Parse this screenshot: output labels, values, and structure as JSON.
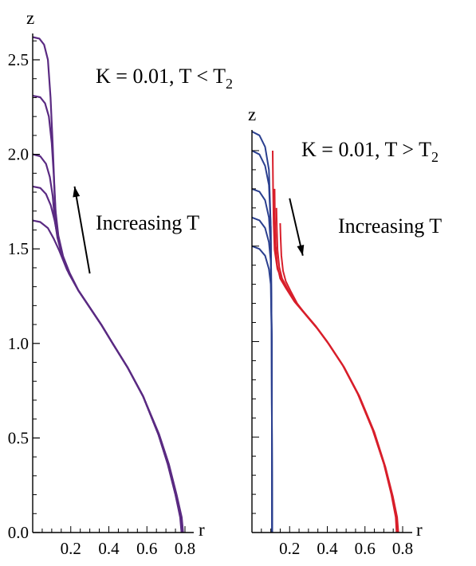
{
  "chart_data": [
    {
      "type": "line",
      "panel": "left",
      "title": "",
      "xlabel": "r",
      "ylabel": "z",
      "xlim": [
        0,
        0.82
      ],
      "ylim": [
        0,
        2.65
      ],
      "x_ticks": [
        {
          "value": 0.2,
          "label": "0.2"
        },
        {
          "value": 0.4,
          "label": "0.4"
        },
        {
          "value": 0.6,
          "label": "0.6"
        },
        {
          "value": 0.8,
          "label": "0.8"
        }
      ],
      "y_ticks": [
        {
          "value": 0.0,
          "label": "0.0"
        },
        {
          "value": 0.5,
          "label": "0.5"
        },
        {
          "value": 1.0,
          "label": "1.0"
        },
        {
          "value": 1.5,
          "label": "1.5"
        },
        {
          "value": 2.0,
          "label": "2.0"
        },
        {
          "value": 2.5,
          "label": "2.5"
        }
      ],
      "annotations": {
        "condition": "K = 0.01, T < T",
        "condition_sub": "2",
        "trend": "Increasing T"
      },
      "arrow": {
        "from": [
          0.3,
          1.37
        ],
        "to": [
          0.22,
          1.83
        ],
        "direction": "up"
      },
      "series_color": "#5a2a82",
      "series": [
        {
          "top_z": 1.65,
          "points": [
            [
              0,
              1.65
            ],
            [
              0.04,
              1.642
            ],
            [
              0.08,
              1.61
            ],
            [
              0.11,
              1.555
            ],
            [
              0.14,
              1.49
            ],
            [
              0.18,
              1.39
            ],
            [
              0.24,
              1.28
            ],
            [
              0.3,
              1.19
            ],
            [
              0.36,
              1.1
            ],
            [
              0.42,
              1.0
            ],
            [
              0.5,
              0.87
            ],
            [
              0.58,
              0.72
            ],
            [
              0.66,
              0.52
            ],
            [
              0.71,
              0.36
            ],
            [
              0.75,
              0.2
            ],
            [
              0.775,
              0.08
            ],
            [
              0.782,
              0.0
            ]
          ]
        },
        {
          "top_z": 1.83,
          "points": [
            [
              0,
              1.83
            ],
            [
              0.04,
              1.822
            ],
            [
              0.07,
              1.79
            ],
            [
              0.095,
              1.73
            ],
            [
              0.115,
              1.65
            ],
            [
              0.13,
              1.57
            ],
            [
              0.155,
              1.47
            ],
            [
              0.19,
              1.38
            ],
            [
              0.24,
              1.28
            ],
            [
              0.3,
              1.19
            ],
            [
              0.36,
              1.1
            ],
            [
              0.42,
              1.0
            ],
            [
              0.5,
              0.87
            ],
            [
              0.58,
              0.72
            ],
            [
              0.66,
              0.52
            ],
            [
              0.71,
              0.36
            ],
            [
              0.75,
              0.2
            ],
            [
              0.777,
              0.08
            ],
            [
              0.784,
              0.0
            ]
          ]
        },
        {
          "top_z": 2.0,
          "points": [
            [
              0,
              2.0
            ],
            [
              0.04,
              1.99
            ],
            [
              0.07,
              1.95
            ],
            [
              0.09,
              1.88
            ],
            [
              0.105,
              1.78
            ],
            [
              0.115,
              1.66
            ],
            [
              0.13,
              1.56
            ],
            [
              0.155,
              1.46
            ],
            [
              0.19,
              1.37
            ],
            [
              0.24,
              1.28
            ],
            [
              0.3,
              1.19
            ],
            [
              0.36,
              1.1
            ],
            [
              0.42,
              1.0
            ],
            [
              0.5,
              0.87
            ],
            [
              0.58,
              0.72
            ],
            [
              0.66,
              0.52
            ],
            [
              0.712,
              0.36
            ],
            [
              0.752,
              0.2
            ],
            [
              0.779,
              0.08
            ],
            [
              0.786,
              0.0
            ]
          ]
        },
        {
          "top_z": 2.31,
          "points": [
            [
              0,
              2.31
            ],
            [
              0.04,
              2.302
            ],
            [
              0.065,
              2.27
            ],
            [
              0.085,
              2.2
            ],
            [
              0.1,
              2.06
            ],
            [
              0.11,
              1.9
            ],
            [
              0.118,
              1.72
            ],
            [
              0.13,
              1.58
            ],
            [
              0.155,
              1.47
            ],
            [
              0.19,
              1.37
            ],
            [
              0.24,
              1.28
            ],
            [
              0.3,
              1.19
            ],
            [
              0.36,
              1.1
            ],
            [
              0.42,
              1.0
            ],
            [
              0.5,
              0.87
            ],
            [
              0.58,
              0.72
            ],
            [
              0.662,
              0.52
            ],
            [
              0.714,
              0.36
            ],
            [
              0.754,
              0.2
            ],
            [
              0.781,
              0.08
            ],
            [
              0.788,
              0.0
            ]
          ]
        },
        {
          "top_z": 2.62,
          "points": [
            [
              0,
              2.62
            ],
            [
              0.035,
              2.612
            ],
            [
              0.06,
              2.58
            ],
            [
              0.08,
              2.5
            ],
            [
              0.094,
              2.3
            ],
            [
              0.105,
              2.05
            ],
            [
              0.113,
              1.85
            ],
            [
              0.12,
              1.7
            ],
            [
              0.135,
              1.57
            ],
            [
              0.16,
              1.46
            ],
            [
              0.195,
              1.37
            ],
            [
              0.24,
              1.28
            ],
            [
              0.3,
              1.19
            ],
            [
              0.36,
              1.1
            ],
            [
              0.42,
              1.0
            ],
            [
              0.5,
              0.87
            ],
            [
              0.58,
              0.72
            ],
            [
              0.664,
              0.52
            ],
            [
              0.716,
              0.36
            ],
            [
              0.756,
              0.2
            ],
            [
              0.783,
              0.08
            ],
            [
              0.79,
              0.0
            ]
          ]
        }
      ]
    },
    {
      "type": "line",
      "panel": "right",
      "title": "",
      "xlabel": "r",
      "ylabel": "z",
      "xlim": [
        0,
        0.82
      ],
      "ylim": [
        0,
        2.12
      ],
      "x_ticks": [
        {
          "value": 0.2,
          "label": "0.2"
        },
        {
          "value": 0.4,
          "label": "0.4"
        },
        {
          "value": 0.6,
          "label": "0.6"
        },
        {
          "value": 0.8,
          "label": "0.8"
        }
      ],
      "y_ticks": [],
      "annotations": {
        "condition": "K = 0.01, T > T",
        "condition_sub": "2",
        "trend": "Increasing T"
      },
      "arrow": {
        "from": [
          0.2,
          1.75
        ],
        "to": [
          0.27,
          1.45
        ],
        "direction": "down"
      },
      "blue_color": "#2a3f8f",
      "red_color": "#d81e2a",
      "blue_series": [
        {
          "top_z": 2.1,
          "points": [
            [
              0,
              2.1
            ],
            [
              0.04,
              2.08
            ],
            [
              0.07,
              2.02
            ],
            [
              0.09,
              1.9
            ],
            [
              0.1,
              1.6
            ],
            [
              0.105,
              1.0
            ],
            [
              0.107,
              0.0
            ]
          ]
        },
        {
          "top_z": 2.0,
          "points": [
            [
              0,
              2.0
            ],
            [
              0.04,
              1.98
            ],
            [
              0.07,
              1.92
            ],
            [
              0.09,
              1.82
            ],
            [
              0.1,
              1.6
            ],
            [
              0.105,
              1.0
            ],
            [
              0.107,
              0.0
            ]
          ]
        },
        {
          "top_z": 1.8,
          "points": [
            [
              0,
              1.8
            ],
            [
              0.04,
              1.785
            ],
            [
              0.07,
              1.74
            ],
            [
              0.09,
              1.65
            ],
            [
              0.1,
              1.5
            ],
            [
              0.105,
              1.0
            ],
            [
              0.107,
              0.0
            ]
          ]
        },
        {
          "top_z": 1.65,
          "points": [
            [
              0,
              1.65
            ],
            [
              0.04,
              1.635
            ],
            [
              0.07,
              1.595
            ],
            [
              0.09,
              1.52
            ],
            [
              0.1,
              1.42
            ],
            [
              0.105,
              1.0
            ],
            [
              0.107,
              0.0
            ]
          ]
        },
        {
          "top_z": 1.5,
          "points": [
            [
              0,
              1.5
            ],
            [
              0.04,
              1.485
            ],
            [
              0.07,
              1.45
            ],
            [
              0.09,
              1.38
            ],
            [
              0.1,
              1.3
            ],
            [
              0.105,
              1.0
            ],
            [
              0.107,
              0.0
            ]
          ]
        }
      ],
      "red_series": [
        {
          "points": [
            [
              0.11,
              2.0
            ],
            [
              0.112,
              1.8
            ],
            [
              0.115,
              1.62
            ],
            [
              0.12,
              1.48
            ],
            [
              0.135,
              1.38
            ],
            [
              0.17,
              1.3
            ],
            [
              0.22,
              1.22
            ],
            [
              0.28,
              1.15
            ],
            [
              0.34,
              1.08
            ],
            [
              0.4,
              1.0
            ],
            [
              0.48,
              0.88
            ],
            [
              0.56,
              0.73
            ],
            [
              0.64,
              0.54
            ],
            [
              0.7,
              0.36
            ],
            [
              0.74,
              0.2
            ],
            [
              0.763,
              0.08
            ],
            [
              0.768,
              0.0
            ]
          ]
        },
        {
          "points": [
            [
              0.12,
              1.8
            ],
            [
              0.122,
              1.65
            ],
            [
              0.126,
              1.5
            ],
            [
              0.134,
              1.4
            ],
            [
              0.15,
              1.33
            ],
            [
              0.18,
              1.28
            ],
            [
              0.225,
              1.21
            ],
            [
              0.282,
              1.145
            ],
            [
              0.342,
              1.075
            ],
            [
              0.402,
              0.995
            ],
            [
              0.482,
              0.875
            ],
            [
              0.562,
              0.725
            ],
            [
              0.642,
              0.535
            ],
            [
              0.702,
              0.355
            ],
            [
              0.742,
              0.198
            ],
            [
              0.765,
              0.08
            ],
            [
              0.771,
              0.0
            ]
          ]
        },
        {
          "points": [
            [
              0.13,
              1.7
            ],
            [
              0.132,
              1.6
            ],
            [
              0.136,
              1.48
            ],
            [
              0.145,
              1.39
            ],
            [
              0.16,
              1.33
            ],
            [
              0.19,
              1.275
            ],
            [
              0.23,
              1.205
            ],
            [
              0.285,
              1.14
            ],
            [
              0.345,
              1.07
            ],
            [
              0.405,
              0.99
            ],
            [
              0.485,
              0.87
            ],
            [
              0.565,
              0.72
            ],
            [
              0.645,
              0.53
            ],
            [
              0.705,
              0.35
            ],
            [
              0.745,
              0.195
            ],
            [
              0.768,
              0.08
            ],
            [
              0.774,
              0.0
            ]
          ]
        },
        {
          "points": [
            [
              0.15,
              1.62
            ],
            [
              0.152,
              1.55
            ],
            [
              0.156,
              1.45
            ],
            [
              0.165,
              1.37
            ],
            [
              0.18,
              1.315
            ],
            [
              0.205,
              1.265
            ],
            [
              0.24,
              1.2
            ],
            [
              0.29,
              1.135
            ],
            [
              0.35,
              1.065
            ],
            [
              0.41,
              0.985
            ],
            [
              0.49,
              0.865
            ],
            [
              0.57,
              0.715
            ],
            [
              0.65,
              0.525
            ],
            [
              0.708,
              0.345
            ],
            [
              0.748,
              0.19
            ],
            [
              0.771,
              0.08
            ],
            [
              0.777,
              0.0
            ]
          ]
        }
      ]
    }
  ]
}
